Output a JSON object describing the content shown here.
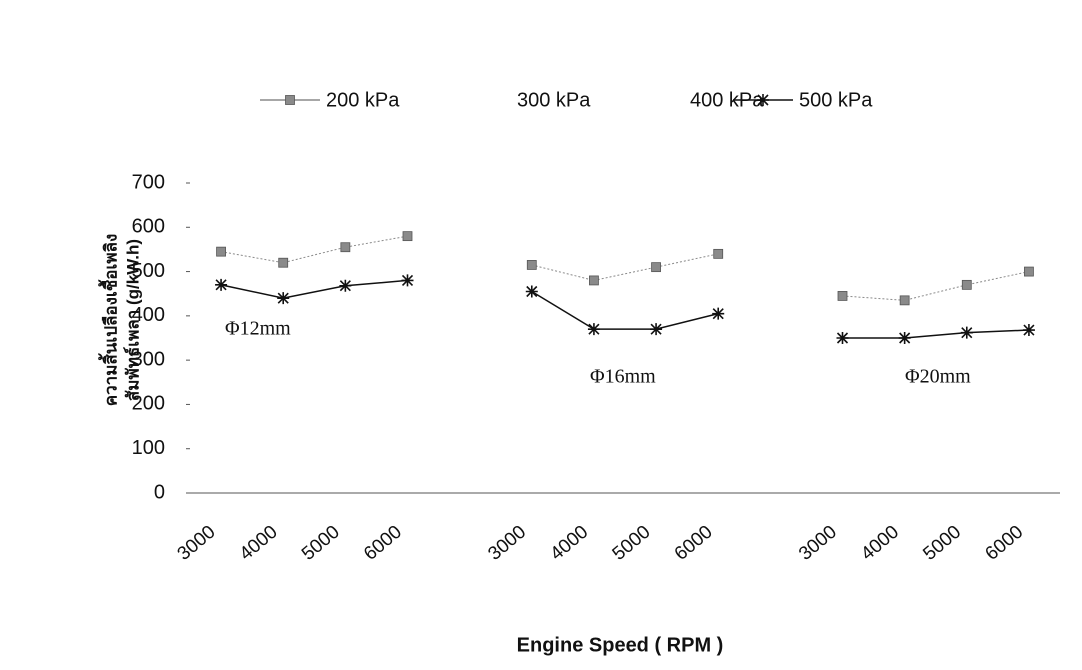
{
  "chart_data": {
    "type": "line",
    "y_label": [
      "ความสิ้นเปลืองเชื้อเพลิง",
      "สัมพัทธ์เพลา (g/kW.h)"
    ],
    "x_label": "Engine Speed ( RPM )",
    "categories": [
      "3000",
      "4000",
      "5000",
      "6000",
      null,
      "3000",
      "4000",
      "5000",
      "6000",
      null,
      "3000",
      "4000",
      "5000",
      "6000"
    ],
    "series": [
      {
        "name": "200 kPa",
        "color": "#8a8a8a",
        "marker": "square",
        "values": [
          545,
          520,
          555,
          580,
          null,
          515,
          480,
          510,
          540,
          null,
          445,
          435,
          470,
          500
        ]
      },
      {
        "name": "300 kPa",
        "values": [
          null,
          null,
          null,
          null,
          null,
          null,
          null,
          null,
          null,
          null,
          null,
          null,
          null,
          null
        ]
      },
      {
        "name": "400 kPa",
        "values": [
          null,
          null,
          null,
          null,
          null,
          null,
          null,
          null,
          null,
          null,
          null,
          null,
          null,
          null
        ]
      },
      {
        "name": "500 kPa",
        "color": "#111111",
        "marker": "asterisk",
        "values": [
          470,
          440,
          468,
          480,
          null,
          455,
          370,
          370,
          405,
          null,
          350,
          350,
          362,
          368
        ]
      }
    ],
    "annotations": [
      "Φ12mm",
      "Φ16mm",
      "Φ20mm"
    ],
    "ylim": [
      0,
      700
    ],
    "yticks": [
      0,
      100,
      200,
      300,
      400,
      500,
      600,
      700
    ],
    "grid": false
  }
}
